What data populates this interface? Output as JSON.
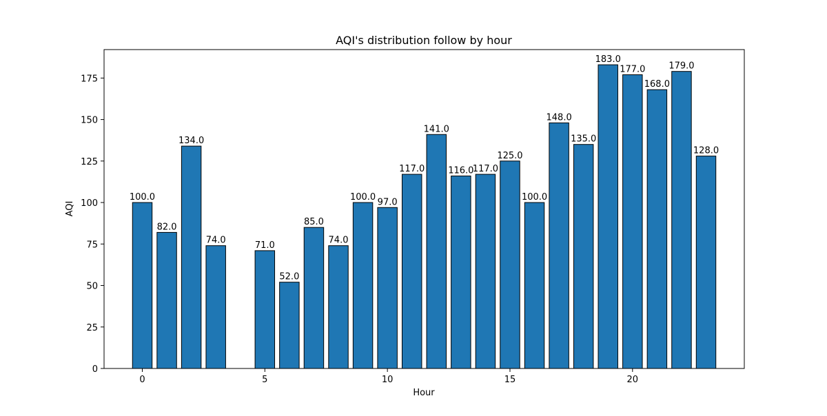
{
  "chart_data": {
    "type": "bar",
    "title": "AQI's distribution follow by hour",
    "xlabel": "Hour",
    "ylabel": "AQI",
    "x": [
      0,
      1,
      2,
      3,
      5,
      6,
      7,
      8,
      9,
      10,
      11,
      12,
      13,
      14,
      15,
      16,
      17,
      18,
      19,
      20,
      21,
      22,
      23
    ],
    "values": [
      100,
      82,
      134,
      74,
      71,
      52,
      85,
      74,
      100,
      97,
      117,
      141,
      116,
      117,
      125,
      100,
      148,
      135,
      183,
      177,
      168,
      179,
      128
    ],
    "data_labels": [
      "100.0",
      "82.0",
      "134.0",
      "74.0",
      "71.0",
      "52.0",
      "85.0",
      "74.0",
      "100.0",
      "97.0",
      "117.0",
      "141.0",
      "116.0",
      "117.0",
      "125.0",
      "100.0",
      "148.0",
      "135.0",
      "183.0",
      "177.0",
      "168.0",
      "179.0",
      "128.0"
    ],
    "xticks": [
      0,
      5,
      10,
      15,
      20
    ],
    "yticks": [
      0,
      25,
      50,
      75,
      100,
      125,
      150,
      175
    ],
    "xlim": [
      -1.56,
      24.56
    ],
    "ylim": [
      0,
      192.15
    ],
    "grid": false,
    "colors": {
      "bar_fill": "#1f77b4",
      "bar_edge": "#000000"
    }
  }
}
